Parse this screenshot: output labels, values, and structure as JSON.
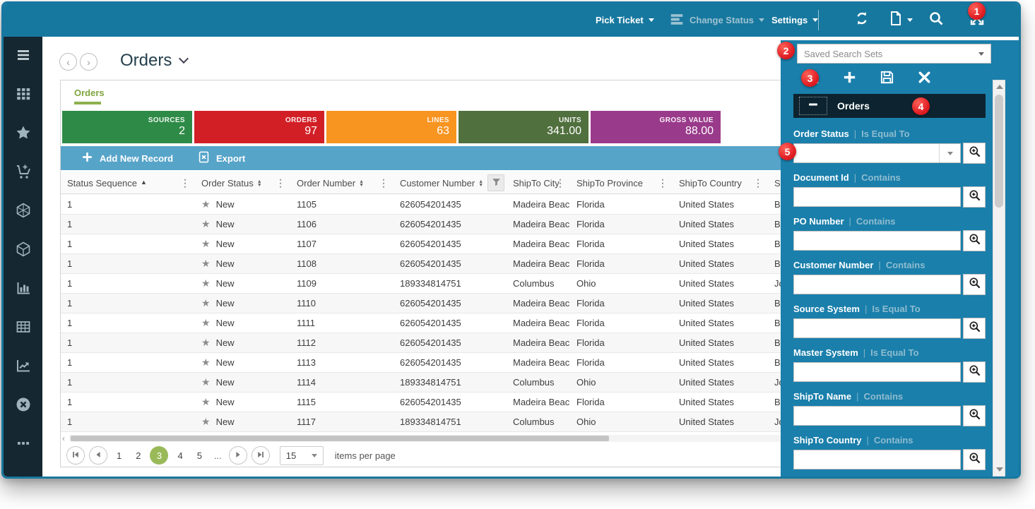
{
  "colors": {
    "topbar": "#17789F",
    "search_panel": "#1A7FAB",
    "sidebar": "#152731",
    "toolbar": "#57A4C9",
    "tab_accent": "#7EA43E",
    "active_page": "#9ABA59"
  },
  "topbar": {
    "menus": [
      "Pick Ticket",
      "Change Status",
      "Settings"
    ],
    "action_icons": [
      "refresh-icon",
      "new-document-icon",
      "search-icon",
      "exit-fullscreen-icon"
    ]
  },
  "sidebar": {
    "items": [
      "menu",
      "apps",
      "favorites",
      "cart",
      "network",
      "package",
      "bar-chart",
      "data-table",
      "trend",
      "close",
      "more"
    ]
  },
  "header": {
    "title": "Orders"
  },
  "tab": {
    "label": "Orders"
  },
  "kpis": [
    {
      "label": "SOURCES",
      "value": "2",
      "color": "#2E8B47"
    },
    {
      "label": "ORDERS",
      "value": "97",
      "color": "#D21F26"
    },
    {
      "label": "LINES",
      "value": "63",
      "color": "#F89420"
    },
    {
      "label": "UNITS",
      "value": "341.00",
      "color": "#50703E"
    },
    {
      "label": "GROSS VALUE",
      "value": "88.00",
      "color": "#9A3A8B"
    }
  ],
  "toolbar": {
    "add_label": "Add New Record",
    "export_label": "Export"
  },
  "grid": {
    "columns": [
      {
        "label": "Status Sequence",
        "sort": "asc",
        "menu": true
      },
      {
        "label": "Order Status",
        "sort": "updown",
        "menu": true
      },
      {
        "label": "Order Number",
        "sort": "updown",
        "menu": true
      },
      {
        "label": "Customer Number",
        "sort": "updown",
        "filter": true
      },
      {
        "label": "ShipTo City",
        "menu": true
      },
      {
        "label": "ShipTo Province",
        "menu": true
      },
      {
        "label": "ShipTo Country",
        "menu": true
      },
      {
        "label": "S",
        "truncated": true
      }
    ],
    "rows": [
      [
        "1",
        "New",
        "1105",
        "626054201435",
        "Madeira Beach",
        "Florida",
        "United States",
        "B"
      ],
      [
        "1",
        "New",
        "1106",
        "626054201435",
        "Madeira Beach",
        "Florida",
        "United States",
        "B"
      ],
      [
        "1",
        "New",
        "1107",
        "626054201435",
        "Madeira Beach",
        "Florida",
        "United States",
        "B"
      ],
      [
        "1",
        "New",
        "1108",
        "626054201435",
        "Madeira Beach",
        "Florida",
        "United States",
        "B"
      ],
      [
        "1",
        "New",
        "1109",
        "189334814751",
        "Columbus",
        "Ohio",
        "United States",
        "Jo"
      ],
      [
        "1",
        "New",
        "1110",
        "626054201435",
        "Madeira Beach",
        "Florida",
        "United States",
        "B"
      ],
      [
        "1",
        "New",
        "1111",
        "626054201435",
        "Madeira Beach",
        "Florida",
        "United States",
        "B"
      ],
      [
        "1",
        "New",
        "1112",
        "626054201435",
        "Madeira Beach",
        "Florida",
        "United States",
        "B"
      ],
      [
        "1",
        "New",
        "1113",
        "626054201435",
        "Madeira Beach",
        "Florida",
        "United States",
        "B"
      ],
      [
        "1",
        "New",
        "1114",
        "189334814751",
        "Columbus",
        "Ohio",
        "United States",
        "Jo"
      ],
      [
        "1",
        "New",
        "1115",
        "626054201435",
        "Madeira Beach",
        "Florida",
        "United States",
        "B"
      ],
      [
        "1",
        "New",
        "1117",
        "189334814751",
        "Columbus",
        "Ohio",
        "United States",
        "Jo"
      ]
    ]
  },
  "pagination": {
    "pages": [
      "1",
      "2",
      "3",
      "4",
      "5"
    ],
    "active_page": "3",
    "ellipsis": "...",
    "page_size": "15",
    "items_label": "items per page"
  },
  "search_panel": {
    "saved_placeholder": "Saved Search Sets",
    "section_title": "Orders",
    "fields": [
      {
        "name": "Order Status",
        "operator": "Is Equal To",
        "combo": true,
        "value": ""
      },
      {
        "name": "Document Id",
        "operator": "Contains",
        "value": ""
      },
      {
        "name": "PO Number",
        "operator": "Contains",
        "value": ""
      },
      {
        "name": "Customer Number",
        "operator": "Contains",
        "value": ""
      },
      {
        "name": "Source System",
        "operator": "Is Equal To",
        "value": ""
      },
      {
        "name": "Master System",
        "operator": "Is Equal To",
        "value": ""
      },
      {
        "name": "ShipTo Name",
        "operator": "Contains",
        "value": ""
      },
      {
        "name": "ShipTo Country",
        "operator": "Contains",
        "value": ""
      }
    ]
  },
  "badges": [
    "1",
    "2",
    "3",
    "4",
    "5"
  ]
}
